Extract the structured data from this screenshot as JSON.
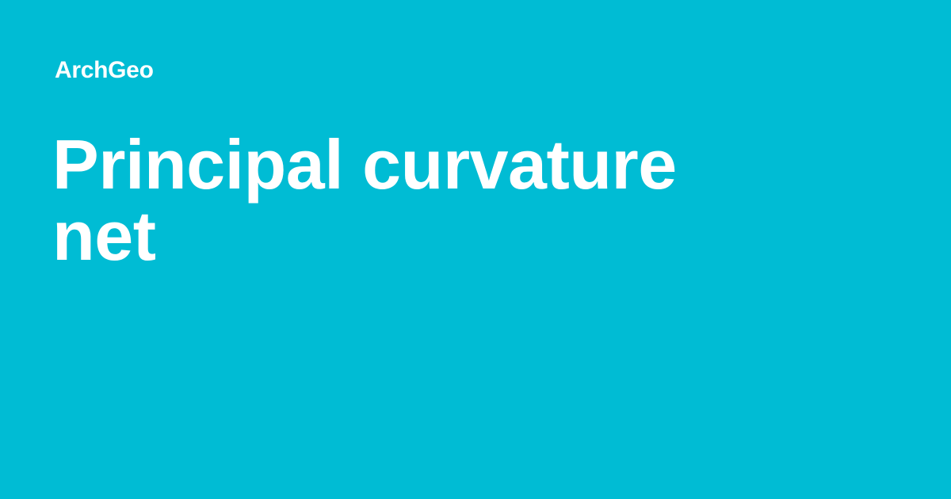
{
  "theme": {
    "background": "#00bcd4",
    "text": "#ffffff"
  },
  "site": {
    "name": "ArchGeo"
  },
  "page": {
    "title": "Principal curvature net"
  }
}
